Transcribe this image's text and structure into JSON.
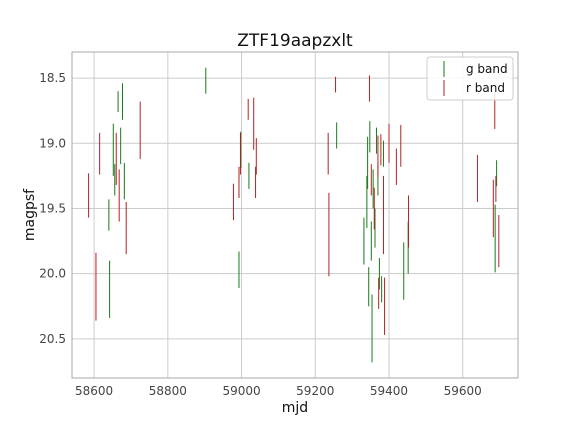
{
  "chart_data": {
    "type": "scatter",
    "title": "ZTF19aapzxlt",
    "xlabel": "mjd",
    "ylabel": "magpsf",
    "xlim": [
      58540,
      59750
    ],
    "ylim": [
      20.8,
      18.3
    ],
    "y_inverted": true,
    "xticks": [
      58600,
      58800,
      59000,
      59200,
      59400,
      59600
    ],
    "yticks": [
      18.5,
      19.0,
      19.5,
      20.0,
      20.5
    ],
    "xtick_labels": [
      "58600",
      "58800",
      "59000",
      "59200",
      "59400",
      "59600"
    ],
    "ytick_labels": [
      "18.5",
      "19.0",
      "19.5",
      "20.0",
      "20.5"
    ],
    "grid": true,
    "legend_position": "top-right",
    "series": [
      {
        "name": "g band",
        "color": "#1a7a1a",
        "points": [
          {
            "x": 58640,
            "y": 19.55,
            "err": 0.12
          },
          {
            "x": 58642,
            "y": 20.12,
            "err": 0.22
          },
          {
            "x": 58652,
            "y": 19.05,
            "err": 0.2
          },
          {
            "x": 58656,
            "y": 19.28,
            "err": 0.12
          },
          {
            "x": 58665,
            "y": 18.68,
            "err": 0.08
          },
          {
            "x": 58672,
            "y": 19.02,
            "err": 0.14
          },
          {
            "x": 58677,
            "y": 18.68,
            "err": 0.14
          },
          {
            "x": 58682,
            "y": 19.29,
            "err": 0.14
          },
          {
            "x": 58903,
            "y": 18.52,
            "err": 0.1
          },
          {
            "x": 58993,
            "y": 19.97,
            "err": 0.14
          },
          {
            "x": 58998,
            "y": 19.05,
            "err": 0.14
          },
          {
            "x": 59020,
            "y": 19.25,
            "err": 0.1
          },
          {
            "x": 59258,
            "y": 18.94,
            "err": 0.1
          },
          {
            "x": 59332,
            "y": 19.75,
            "err": 0.18
          },
          {
            "x": 59340,
            "y": 19.45,
            "err": 0.2
          },
          {
            "x": 59342,
            "y": 19.15,
            "err": 0.2
          },
          {
            "x": 59345,
            "y": 20.1,
            "err": 0.15
          },
          {
            "x": 59348,
            "y": 18.95,
            "err": 0.12
          },
          {
            "x": 59352,
            "y": 19.75,
            "err": 0.15
          },
          {
            "x": 59354,
            "y": 20.42,
            "err": 0.26
          },
          {
            "x": 59357,
            "y": 19.35,
            "err": 0.15
          },
          {
            "x": 59362,
            "y": 19.65,
            "err": 0.15
          },
          {
            "x": 59366,
            "y": 18.98,
            "err": 0.1
          },
          {
            "x": 59370,
            "y": 19.28,
            "err": 0.12
          },
          {
            "x": 59374,
            "y": 20.0,
            "err": 0.12
          },
          {
            "x": 59380,
            "y": 20.12,
            "err": 0.1
          },
          {
            "x": 59385,
            "y": 19.08,
            "err": 0.1
          },
          {
            "x": 59440,
            "y": 19.98,
            "err": 0.22
          },
          {
            "x": 59452,
            "y": 19.8,
            "err": 0.2
          },
          {
            "x": 59688,
            "y": 19.73,
            "err": 0.26
          },
          {
            "x": 59692,
            "y": 19.23,
            "err": 0.1
          }
        ]
      },
      {
        "name": "r band",
        "color": "#b22222",
        "points": [
          {
            "x": 58585,
            "y": 19.4,
            "err": 0.17
          },
          {
            "x": 58605,
            "y": 20.1,
            "err": 0.26
          },
          {
            "x": 58615,
            "y": 19.08,
            "err": 0.16
          },
          {
            "x": 58660,
            "y": 19.12,
            "err": 0.2
          },
          {
            "x": 58668,
            "y": 19.4,
            "err": 0.2
          },
          {
            "x": 58687,
            "y": 19.65,
            "err": 0.2
          },
          {
            "x": 58725,
            "y": 18.9,
            "err": 0.22
          },
          {
            "x": 58978,
            "y": 19.45,
            "err": 0.14
          },
          {
            "x": 58993,
            "y": 19.3,
            "err": 0.12
          },
          {
            "x": 58997,
            "y": 19.08,
            "err": 0.16
          },
          {
            "x": 59018,
            "y": 18.74,
            "err": 0.08
          },
          {
            "x": 59033,
            "y": 18.85,
            "err": 0.2
          },
          {
            "x": 59038,
            "y": 19.3,
            "err": 0.12
          },
          {
            "x": 59040,
            "y": 19.1,
            "err": 0.14
          },
          {
            "x": 59235,
            "y": 19.08,
            "err": 0.16
          },
          {
            "x": 59237,
            "y": 19.7,
            "err": 0.32
          },
          {
            "x": 59255,
            "y": 18.55,
            "err": 0.06
          },
          {
            "x": 59347,
            "y": 18.58,
            "err": 0.1
          },
          {
            "x": 59352,
            "y": 19.28,
            "err": 0.12
          },
          {
            "x": 59360,
            "y": 19.5,
            "err": 0.16
          },
          {
            "x": 59370,
            "y": 19.1,
            "err": 0.16
          },
          {
            "x": 59372,
            "y": 20.15,
            "err": 0.12
          },
          {
            "x": 59378,
            "y": 19.05,
            "err": 0.12
          },
          {
            "x": 59385,
            "y": 19.55,
            "err": 0.3
          },
          {
            "x": 59388,
            "y": 20.25,
            "err": 0.22
          },
          {
            "x": 59400,
            "y": 19.0,
            "err": 0.15
          },
          {
            "x": 59420,
            "y": 19.18,
            "err": 0.14
          },
          {
            "x": 59432,
            "y": 19.02,
            "err": 0.16
          },
          {
            "x": 59453,
            "y": 19.6,
            "err": 0.2
          },
          {
            "x": 59640,
            "y": 19.27,
            "err": 0.18
          },
          {
            "x": 59683,
            "y": 19.5,
            "err": 0.22
          },
          {
            "x": 59687,
            "y": 18.75,
            "err": 0.14
          },
          {
            "x": 59690,
            "y": 19.35,
            "err": 0.1
          },
          {
            "x": 59698,
            "y": 19.75,
            "err": 0.2
          }
        ]
      }
    ]
  }
}
